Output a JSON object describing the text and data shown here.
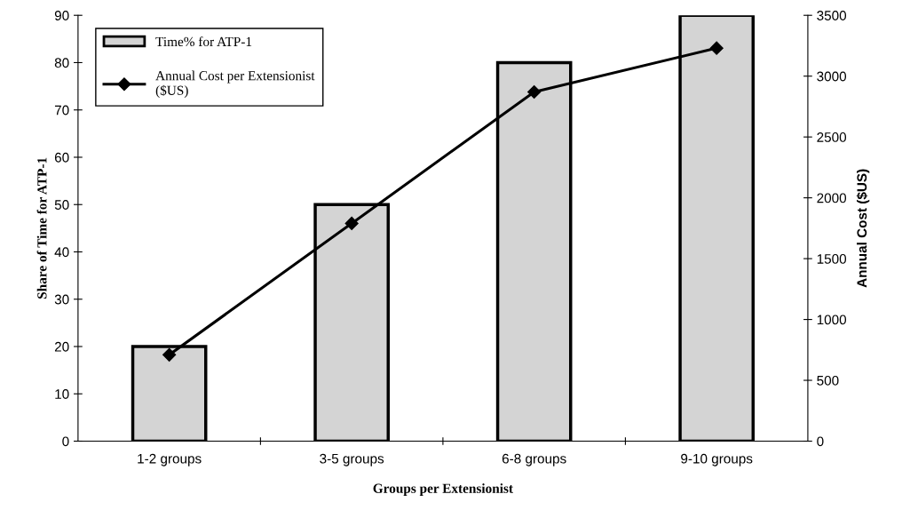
{
  "chart_data": {
    "type": "bar",
    "xlabel": "Groups per Extensionist",
    "ylabel": "Share of Time for ATP-1",
    "y2label": "Annual Cost ($US)",
    "categories": [
      "1-2 groups",
      "3-5 groups",
      "6-8 groups",
      "9-10 groups"
    ],
    "series": [
      {
        "name": "Time% for ATP-1",
        "color": "#d4d4d4",
        "values": [
          20,
          50,
          80,
          90
        ]
      },
      {
        "name": "Annual Cost per Extensionist\n($US)",
        "type": "line",
        "axis": "y2",
        "color": "#000000",
        "marker": "diamond",
        "values": [
          710,
          1790,
          2870,
          3230
        ]
      }
    ],
    "ylim": [
      0,
      90
    ],
    "yticks": [
      0,
      10,
      20,
      30,
      40,
      50,
      60,
      70,
      80,
      90
    ],
    "y2lim": [
      0,
      3500
    ],
    "y2ticks": [
      0,
      500,
      1000,
      1500,
      2000,
      2500,
      3000,
      3500
    ],
    "grid": false,
    "legend": "top left"
  }
}
